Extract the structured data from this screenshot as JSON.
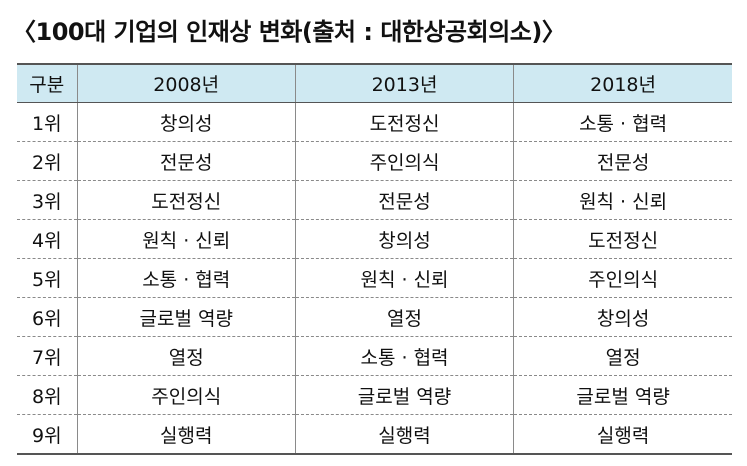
{
  "title": "〈100대 기업의 인재상 변화(출처 : 대한상공회의소)〉",
  "table": {
    "headers": [
      "구분",
      "2008년",
      "2013년",
      "2018년"
    ],
    "rows": [
      [
        "1위",
        "창의성",
        "도전정신",
        "소통 · 협력"
      ],
      [
        "2위",
        "전문성",
        "주인의식",
        "전문성"
      ],
      [
        "3위",
        "도전정신",
        "전문성",
        "원칙 · 신뢰"
      ],
      [
        "4위",
        "원칙 · 신뢰",
        "창의성",
        "도전정신"
      ],
      [
        "5위",
        "소통 · 협력",
        "원칙 · 신뢰",
        "주인의식"
      ],
      [
        "6위",
        "글로벌 역량",
        "열정",
        "창의성"
      ],
      [
        "7위",
        "열정",
        "소통 · 협력",
        "열정"
      ],
      [
        "8위",
        "주인의식",
        "글로벌 역량",
        "글로벌 역량"
      ],
      [
        "9위",
        "실행력",
        "실행력",
        "실행력"
      ]
    ]
  },
  "colors": {
    "header_background": "#cfe9f2",
    "rule": "#555555",
    "grid": "#8a8a8a"
  }
}
